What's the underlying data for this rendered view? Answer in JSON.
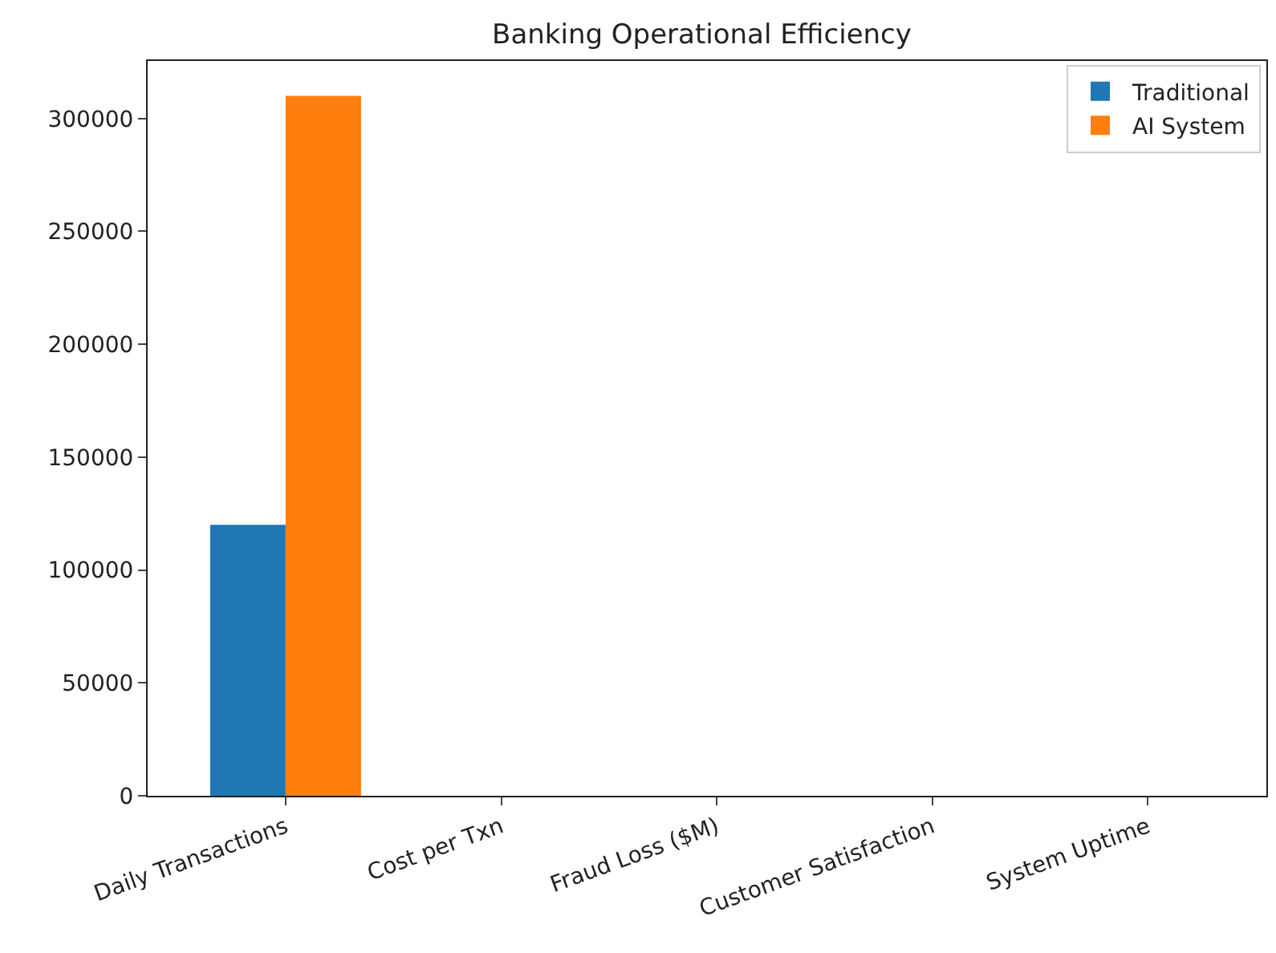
{
  "chart_data": {
    "type": "bar",
    "title": "Banking Operational Efficiency",
    "categories": [
      "Daily Transactions",
      "Cost per Txn",
      "Fraud Loss ($M)",
      "Customer Satisfaction",
      "System Uptime"
    ],
    "series": [
      {
        "name": "Traditional",
        "color": "#1f77b4",
        "values": [
          120000,
          0,
          0,
          0,
          0
        ]
      },
      {
        "name": "AI System",
        "color": "#ff7f0e",
        "values": [
          310000,
          0,
          0,
          0,
          0
        ]
      }
    ],
    "ylim": [
      0,
      325500
    ],
    "yticks": [
      0,
      50000,
      100000,
      150000,
      200000,
      250000,
      300000
    ],
    "legend": "top right"
  }
}
